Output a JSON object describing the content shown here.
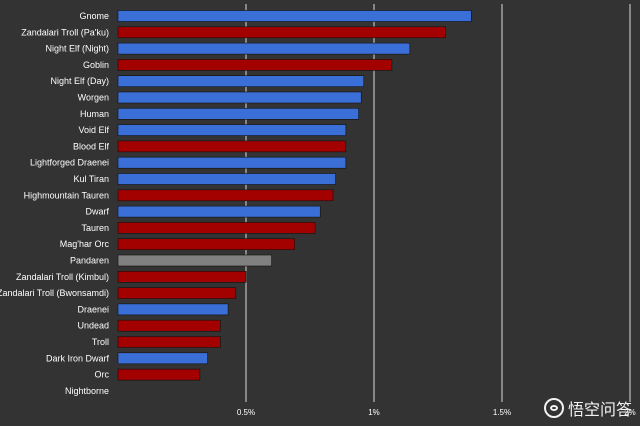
{
  "chart_data": {
    "type": "bar",
    "orientation": "horizontal",
    "categories": [
      "Gnome",
      "Zandalari Troll (Pa'ku)",
      "Night Elf (Night)",
      "Goblin",
      "Night Elf (Day)",
      "Worgen",
      "Human",
      "Void Elf",
      "Blood Elf",
      "Lightforged Draenei",
      "Kul Tiran",
      "Highmountain Tauren",
      "Dwarf",
      "Tauren",
      "Mag'har Orc",
      "Pandaren",
      "Zandalari Troll (Kimbul)",
      "Zandalari Troll (Bwonsamdi)",
      "Draenei",
      "Undead",
      "Troll",
      "Dark Iron Dwarf",
      "Orc",
      "Nightborne"
    ],
    "values": [
      1.38,
      1.28,
      1.14,
      1.07,
      0.96,
      0.95,
      0.94,
      0.89,
      0.89,
      0.89,
      0.85,
      0.84,
      0.79,
      0.77,
      0.69,
      0.6,
      0.5,
      0.46,
      0.43,
      0.4,
      0.4,
      0.35,
      0.32,
      0
    ],
    "faction": [
      "alliance",
      "horde",
      "alliance",
      "horde",
      "alliance",
      "alliance",
      "alliance",
      "alliance",
      "horde",
      "alliance",
      "alliance",
      "horde",
      "alliance",
      "horde",
      "horde",
      "neutral",
      "horde",
      "horde",
      "alliance",
      "horde",
      "horde",
      "alliance",
      "horde",
      "horde"
    ],
    "colors": {
      "alliance": "#3a6fd8",
      "horde": "#a30000",
      "neutral": "#808080"
    },
    "xlim": [
      0,
      2
    ],
    "x_ticks": [
      0.5,
      1,
      1.5,
      2
    ],
    "x_tick_labels": [
      "0.5%",
      "1%",
      "1.5%",
      "2%"
    ],
    "grid": true
  },
  "watermark": {
    "text": "悟空问答"
  }
}
